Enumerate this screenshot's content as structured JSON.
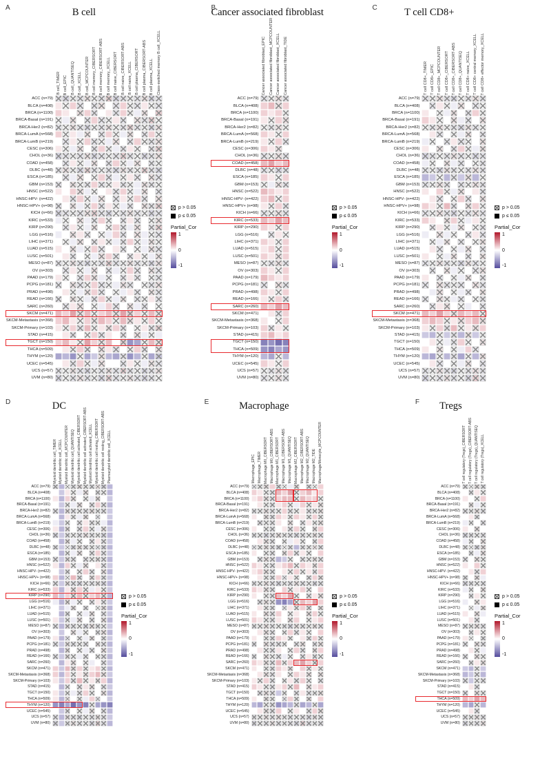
{
  "legend": {
    "p_gt": "p > 0.05",
    "p_le": "p ≤ 0.05",
    "scale_title": "Partial_Cor",
    "scale_max": "1",
    "scale_mid": "0",
    "scale_min": "-1"
  },
  "colors": {
    "positive_end": "#b2182b",
    "negative_end": "#544c9d",
    "highlight": "#e8282d",
    "cross": "#909090"
  },
  "rows": [
    "ACC (n=79)",
    "BLCA (n=408)",
    "BRCA (n=1100)",
    "BRCA-Basal (n=191)",
    "BRCA-Her2 (n=82)",
    "BRCA-LumA (n=568)",
    "BRCA-LumB (n=219)",
    "CESC (n=306)",
    "CHOL (n=36)",
    "COAD (n=458)",
    "DLBC (n=48)",
    "ESCA (n=185)",
    "GBM (n=153)",
    "HNSC (n=522)",
    "HNSC-HPV- (n=422)",
    "HNSC-HPV+ (n=98)",
    "KICH (n=66)",
    "KIRC (n=533)",
    "KIRP (n=290)",
    "LGG (n=516)",
    "LIHC (n=371)",
    "LUAD (n=515)",
    "LUSC (n=501)",
    "MESO (n=87)",
    "OV (n=303)",
    "PAAD (n=179)",
    "PCPG (n=181)",
    "PRAD (n=498)",
    "READ (n=166)",
    "SARC (n=260)",
    "SKCM (n=471)",
    "SKCM-Metastasis (n=368)",
    "SKCM-Primary (n=103)",
    "STAD (n=415)",
    "TGCT (n=150)",
    "THCA (n=509)",
    "THYM (n=120)",
    "UCEC (n=545)",
    "UCS (n=57)",
    "UVM (n=80)"
  ],
  "encoding": "Each character of a cells string is one heatmap cell, left to right. Letters a-u map linearly to Partial_Cor -1.0 ... +1.0 in 0.1 steps (k = 0). Uppercase = p <= 0.05 (solid square); lowercase = p > 0.05 (crossed square). Values are visual estimates read from cell colors.",
  "chart_data": [
    {
      "panel_index": 0,
      "letter": "A",
      "title": "B cell",
      "type": "heatmap",
      "columns": [
        "B cell_TIMER",
        "B cell_EPIC",
        "B cell_QUANTISEQ",
        "B cell_XCELL",
        "B cell_MCPCOUNTER",
        "B cell memory_CIBERSORT",
        "B cell memory_CIBERSORT-ABS",
        "B cell memory_XCELL",
        "B cell naive_CIBERSORT",
        "B cell naive_CIBERSORT-ABS",
        "B cell naive_XCELL",
        "B cell plasma_CIBERSORT",
        "B cell plasma_CIBERSORT-ABS",
        "B cell plasma_XCELL",
        "Class-switched memory B cell_XCELL"
      ],
      "cells": [
        "jikjlkjmijkjlij",
        "LkMjKjlKjMkjLkj",
        "MLKlMjKLjMkJlKm",
        "kJlKjMjkLjKljmk",
        "jkljikjlkjmjkil",
        "MkLJlKjMkJlKjMk",
        "KjLkMjkJlKjMkjl",
        "LkJlKjMkJjLkKjm",
        "ijkjlijkjmjkijl",
        "KjLkJlKjMkJlKjk",
        "jlkimjkjiljkmji",
        "KjJlKkMjJkLjKlj",
        "jKlkjMjkLjkJljk",
        "LKMlJkKLjMkJlKj",
        "KLjMkJlKjLkMjKl",
        "jKlJkMjLkJjKljm",
        "ijkjlmjikjljkij",
        "JkKlJjMkKjLjKkl",
        "KjLkJlKkMjJlKjm",
        "JKlLjKkJMjKlJkj",
        "KkJlKjLkJjMkJlk",
        "LKlJkMjKLjKkJlj",
        "KLjKkJlMjKjLkJl",
        "jkljikjmjkljkil",
        "KjLkJlKjJkMjKlj",
        "LkKjMlJkKjLjKkj",
        "jKljkMjkJljKkjl",
        "KLkJlMjKkJLjKlj",
        "jKlkJjMkJlKjkLj",
        "KjLlKkJMjKlJjKk",
        "NMOlNkMNlOmMkNl",
        "MNLkMlNMkNlLkMk",
        "LkMjNkLlMjKkLjm",
        "KLjKkMjLKjKlJkJ",
        "MNLkOMlNKmEFkNl",
        "KLkMjKlLjKkMjKl",
        "FGEkFHlGFjEGkFh",
        "KLjMkJlKKjLkJlj",
        "jkljikjljmjkijl",
        "ikjljkimjkljijk"
      ],
      "highlights": [
        {
          "rows": [
            30,
            30
          ],
          "cols": [
            0,
            14
          ],
          "include_label": true
        },
        {
          "rows": [
            34,
            34
          ],
          "cols": [
            0,
            14
          ],
          "include_label": true
        }
      ]
    },
    {
      "panel_index": 1,
      "letter": "B",
      "title": "Cancer associated fibroblast",
      "type": "heatmap",
      "columns": [
        "Cancer associated fibroblast_EPIC",
        "Cancer associated fibroblast_MCPCOUNTER",
        "Cancer associated fibroblast_XCELL",
        "Cancer associated fibroblast_TIDE"
      ],
      "cells": [
        "jklj",
        "MNlM",
        "MLMk",
        "LkMl",
        "kjlk",
        "MLkM",
        "LkMj",
        "MLlK",
        "jklj",
        "NOMN",
        "jkij",
        "MLkM",
        "kJlj",
        "NMLM",
        "MNkM",
        "LkMj",
        "jklj",
        "NMON",
        "MLkM",
        "KjLk",
        "MLkM",
        "LMkM",
        "MLlM",
        "kjlj",
        "MLkM",
        "NMLM",
        "jKlj",
        "MLkM",
        "LkMj",
        "NMON",
        "KLjM",
        "LKkM",
        "MjLk",
        "MNLM",
        "DECD",
        "EDFE",
        "GFkG",
        "MLkM",
        "kjlj",
        "jklj"
      ],
      "highlights": [
        {
          "rows": [
            9,
            9
          ],
          "cols": [
            0,
            3
          ],
          "include_label": true
        },
        {
          "rows": [
            17,
            17
          ],
          "cols": [
            0,
            3
          ],
          "include_label": true
        },
        {
          "rows": [
            29,
            29
          ],
          "cols": [
            0,
            3
          ],
          "include_label": true
        },
        {
          "rows": [
            34,
            35
          ],
          "cols": [
            0,
            3
          ],
          "include_label": true
        }
      ]
    },
    {
      "panel_index": 2,
      "letter": "C",
      "title": "T cell CD8+",
      "type": "heatmap",
      "columns": [
        "T cell CD8+_TIMER",
        "T cell CD8+_EPIC",
        "T cell CD8+_MCPCOUNTER",
        "T cell CD8+_CIBERSORT",
        "T cell CD8+_CIBERSORT-ABS",
        "T cell CD8+_QUANTISEQ",
        "T cell CD8+ naive_XCELL",
        "T cell CD8+ central memory_XCELL",
        "T cell CD8+ effector memory_XCELL"
      ],
      "cells": [
        "jkljikjlj",
        "KjLkJlKjk",
        "LKkJlKjMk",
        "MLkKlJjKl",
        "kjlkjiljk",
        "KLjKkJlKj",
        "JkKjLjkKl",
        "LKlKjMkJl",
        "ijkjljkij",
        "JkKlJjKkj",
        "jkiljkjlj",
        "GHkGjHlGk",
        "jkljKjklj",
        "LKMkJlKLj",
        "KLjKkMjKl",
        "MLkNjKlMk",
        "jkljikjlj",
        "MLKlMkJLk",
        "KjLkJlKkj",
        "JKlJkKjLj",
        "KkJlKjKkl",
        "KLjKkJlKj",
        "LKkJlKjKl",
        "jkljkiljk",
        "KjKlJkKjl",
        "LKjKkJlKj",
        "jKljkjKlj",
        "KJlKkJjKl",
        "jKlkJjKkj",
        "KjLlKkJKj",
        "NMOMlNMNk",
        "MNMkLlMNl",
        "LkMjNkLlM",
        "HGkHjGlHk",
        "KLkJjMkKl",
        "LKlKkJMjK",
        "GFkGjFkGl",
        "KLjKkJlKj",
        "jkljikjlj",
        "ikjljkimj"
      ],
      "highlights": [
        {
          "rows": [
            30,
            30
          ],
          "cols": [
            0,
            8
          ],
          "include_label": true
        }
      ]
    },
    {
      "panel_index": 3,
      "letter": "D",
      "title": "DC",
      "type": "heatmap",
      "columns": [
        "Myeloid dendritic cell_TIMER",
        "Myeloid dendritic cell_XCELL",
        "Myeloid dendritic cell_MCPCOUNTER",
        "Myeloid dendritic cell_QUANTISEQ",
        "Myeloid dendritic cell activated_CIBERSORT",
        "Myeloid dendritic cell activated_CIBERSORT-ABS",
        "Myeloid dendritic cell activated_XCELL",
        "Myeloid dendritic cell resting_CIBERSORT",
        "Myeloid dendritic cell resting_CIBERSORT-ABS",
        "Plasmacytoid dendritic cell_XCELL"
      ],
      "cells": [
        "jGkjlkjliG",
        "KHLkJlKjkG",
        "LGMlKkJlKH",
        "KHkJlKjMjG",
        "jGljkjlkjH",
        "KGLkJlKjKH",
        "JHkKjLjkJG",
        "LGlKjMkJlH",
        "iHjkjljkiG",
        "KGlJkKjLjH",
        "jHkiljkjiG",
        "KGkJlKjMjH",
        "jHljKjkljG",
        "LGMkJlKLjH",
        "KHjKkMjKlG",
        "MGkNjKlMjH",
        "jHljikjliG",
        "MGLlMkJLkH",
        "NHMlNkMNlG",
        "JGlJkKjLjH",
        "KHJlKjKklG",
        "KGjKkJlKjH",
        "LHkJlKjKlG",
        "jGljkiljkH",
        "KHKlJkKjlG",
        "LGjKkJlKjH",
        "jHljkjKljG",
        "KGlKkJjKlH",
        "jHlkJjKkjG",
        "KGLlKkJKjH",
        "MHNlMkLMkG",
        "MGMkLlMNlH",
        "LHMjNkLlMG",
        "KGkKjLlKjH",
        "LHkJjMkKlG",
        "LGlKkJMjKH",
        "EDFCEDkFED",
        "KHjKkJlKjG",
        "jGljikjljH",
        "iHjljkimjG"
      ],
      "highlights": [
        {
          "rows": [
            18,
            18
          ],
          "cols": [
            0,
            9
          ],
          "include_label": true
        },
        {
          "rows": [
            36,
            36
          ],
          "cols": [
            0,
            4
          ],
          "include_label": true
        }
      ]
    },
    {
      "panel_index": 4,
      "letter": "E",
      "title": "Macrophage",
      "type": "heatmap",
      "columns": [
        "Macrophage_EPIC",
        "Macrophage_TIMER",
        "Macrophage M0_CIBERSORT",
        "Macrophage M0_CIBERSORT-ABS",
        "Macrophage M1_CIBERSORT",
        "Macrophage M1_CIBERSORT-ABS",
        "Macrophage M1_QUANTISEQ",
        "Macrophage M2_CIBERSORT",
        "Macrophage M2_CIBERSORT-ABS",
        "Macrophage M2_QUANTISEQ",
        "Macrophage M2_TIDE",
        "Macrophage/Monocyte_MCPCOUNTER"
      ],
      "cells": [
        "jklMjkJlKjkM",
        "MLkjNMOkMNLM",
        "LMljMNNkNMMk",
        "KLkjLMkJMkLl",
        "jkljkMjkLjkl",
        "LKljMLkMLkMk",
        "KjkjLKlKjLkl",
        "LKkjKLjMkKlM",
        "jkijlkjijklj",
        "KLljKkJLkKjM",
        "jkljikjGjklj",
        "LKkjKlMjLkKM",
        "KjljGHkKjklj",
        "MLkjLMNkMLlM",
        "LMljKLkMkLjM",
        "KLkjMjLkKjMl",
        "jkljikjljkij",
        "MLljKMkLMkKM",
        "LKkjNMOkKjLl",
        "KjljEDFkNMOM",
        "KLkjKjLkMjKl",
        "LKljMKkLKlMk",
        "MLkjLKlMKkLM",
        "jkljkjiljklj",
        "KLljKkMjLkKM",
        "LKkjMLkKLjMk",
        "jKljjkKjlKjl",
        "KLkjLKkMjKlM",
        "jKlkjJkKjLjk",
        "MLljNkMNOMkM",
        "LKkjMLlKMkLk",
        "KLljLKkMLlKl",
        "LkMjKkLjMkKj",
        "MLkjLMkNKlLM",
        "KjljHkKjLjkl",
        "LKlkKjMkKlKM",
        "GFkjEFGjFGkF",
        "KLljMKkLKjMl",
        "jkljlkjkjilj",
        "ikjljkjimjkj"
      ],
      "highlights": [
        {
          "rows": [
            1,
            2
          ],
          "cols": [
            4,
            6
          ],
          "include_label": false
        },
        {
          "rows": [
            1,
            2
          ],
          "cols": [
            7,
            10
          ],
          "include_label": false
        },
        {
          "rows": [
            18,
            18
          ],
          "cols": [
            4,
            6
          ],
          "include_label": false
        },
        {
          "rows": [
            19,
            19
          ],
          "cols": [
            7,
            10
          ],
          "include_label": false
        },
        {
          "rows": [
            29,
            29
          ],
          "cols": [
            7,
            10
          ],
          "include_label": false
        }
      ]
    },
    {
      "panel_index": 5,
      "letter": "F",
      "title": "Tregs",
      "type": "heatmap",
      "columns": [
        "T cell regulatory (Tregs)_CIBERSORT",
        "T cell regulatory (Tregs)_CIBERSORT-ABS",
        "T cell regulatory (Tregs)_QUANTISEQ",
        "T cell regulatory (Tregs)_XCELL"
      ],
      "cells": [
        "jklj",
        "KjLk",
        "LKkM",
        "KlJk",
        "jklj",
        "KLjK",
        "JkKj",
        "LKlK",
        "ijkj",
        "JkKl",
        "jkil",
        "KjJl",
        "jKlk",
        "LKMk",
        "KLjM",
        "jKlJ",
        "ijkj",
        "JkKl",
        "KjLk",
        "JKlL",
        "KkJl",
        "LKlJ",
        "KLjK",
        "jklj",
        "KjLk",
        "LkKj",
        "jKlj",
        "KLkJ",
        "jKlk",
        "KjLl",
        "HGkH",
        "GHjG",
        "jHkj",
        "KLjK",
        "jKlk",
        "NMON",
        "GFkG",
        "KLjK",
        "jklj",
        "ikjl"
      ],
      "highlights": [
        {
          "rows": [
            35,
            35
          ],
          "cols": [
            0,
            3
          ],
          "include_label": true
        }
      ]
    }
  ]
}
